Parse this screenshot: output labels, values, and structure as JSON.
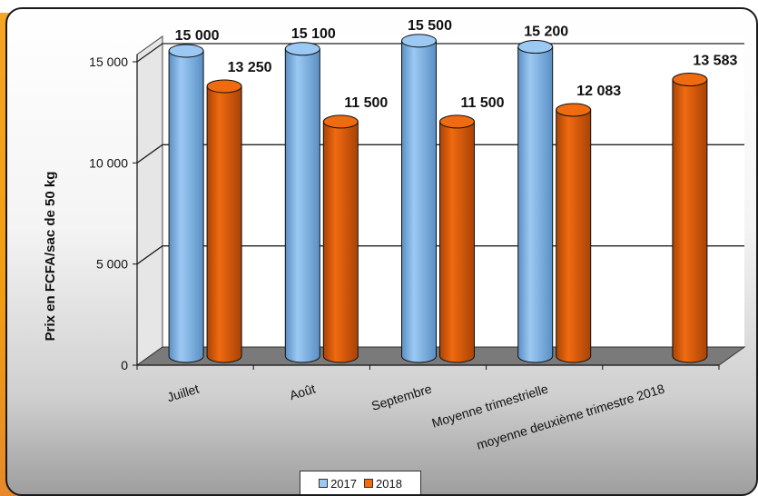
{
  "chart_data": {
    "type": "bar",
    "categories": [
      "Juillet",
      "Août",
      "Septembre",
      "Moyenne trimestrielle",
      "moyenne deuxième trimestre 2018"
    ],
    "series": [
      {
        "name": "2017",
        "values": [
          15000,
          15100,
          15500,
          15200,
          null
        ],
        "labels": [
          "15 000",
          "15 100",
          "15 500",
          "15 200",
          ""
        ],
        "color": "#9cc9f3"
      },
      {
        "name": "2018",
        "values": [
          13250,
          11500,
          11500,
          12083,
          13583
        ],
        "labels": [
          "13 250",
          "11 500",
          "11 500",
          "12 083",
          "13 583"
        ],
        "color": "#f06a10"
      }
    ],
    "ylabel": "Prix en FCFA/sac de 50 kg",
    "ylim": [
      0,
      15000
    ],
    "yticks": [
      0,
      5000,
      10000,
      15000
    ],
    "ytick_labels": [
      "0",
      "5 000",
      "10 000",
      "15 000"
    ],
    "grid": true,
    "legend_position": "bottom"
  }
}
